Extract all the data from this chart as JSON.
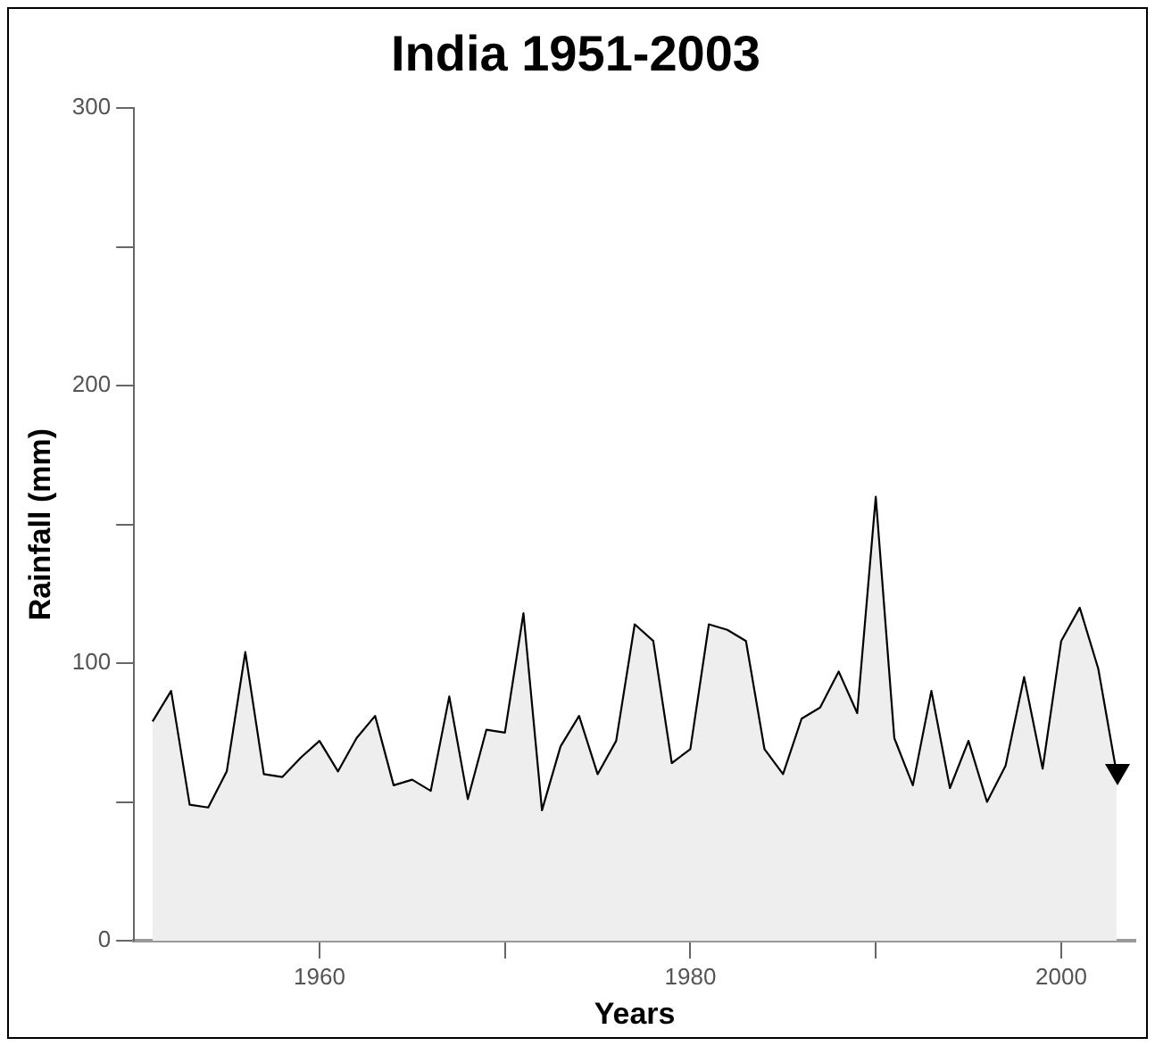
{
  "chart_data": {
    "type": "area",
    "title": "India 1951-2003",
    "xlabel": "Years",
    "ylabel": "Rainfall (mm)",
    "x": [
      1951,
      1952,
      1953,
      1954,
      1955,
      1956,
      1957,
      1958,
      1959,
      1960,
      1961,
      1962,
      1963,
      1964,
      1965,
      1966,
      1967,
      1968,
      1969,
      1970,
      1971,
      1972,
      1973,
      1974,
      1975,
      1976,
      1977,
      1978,
      1979,
      1980,
      1981,
      1982,
      1983,
      1984,
      1985,
      1986,
      1987,
      1988,
      1989,
      1990,
      1991,
      1992,
      1993,
      1994,
      1995,
      1996,
      1997,
      1998,
      1999,
      2000,
      2001,
      2002,
      2003
    ],
    "series": [
      {
        "color": "#000000",
        "values": [
          79,
          90,
          49,
          48,
          61,
          104,
          60,
          59,
          66,
          72,
          61,
          73,
          81,
          56,
          58,
          54,
          88,
          51,
          76,
          75,
          118,
          47,
          70,
          81,
          60,
          72,
          114,
          108,
          64,
          69,
          114,
          112,
          108,
          69,
          60,
          80,
          84,
          97,
          82,
          160,
          73,
          56,
          90,
          55,
          72,
          50,
          63,
          95,
          62,
          108,
          120,
          98,
          60
        ]
      }
    ],
    "xlim": [
      1950,
      2004
    ],
    "xticks": [
      1960,
      {
        "value": 1970,
        "label": null
      },
      1980,
      {
        "value": 1990,
        "label": null
      },
      2000
    ],
    "ylim": [
      0,
      300
    ],
    "yticks": [
      0,
      {
        "value": 50,
        "label": null
      },
      100,
      {
        "value": 150,
        "label": null
      },
      200,
      {
        "value": 250,
        "label": null
      },
      300
    ],
    "grid": false,
    "legend": false,
    "marker": "none",
    "line_style": "solid"
  }
}
